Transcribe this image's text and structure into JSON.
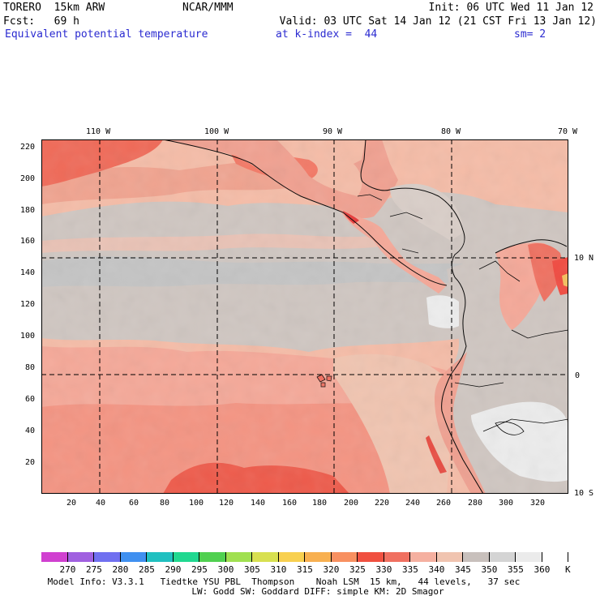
{
  "header": {
    "model": "TORERO  15km ARW",
    "center": "NCAR/MMM",
    "init": "Init: 06 UTC Wed 11 Jan 12",
    "fcst": "Fcst:   69 h",
    "valid": "Valid: 03 UTC Sat 14 Jan 12 (21 CST Fri 13 Jan 12)",
    "field": "Equivalent potential temperature",
    "level": "at k-index =  44",
    "smoothing": "sm= 2"
  },
  "map": {
    "lon_labels": [
      "110 W",
      "100 W",
      "90 W",
      "80 W",
      "70 W"
    ],
    "lat_labels": [
      "10 N",
      "0",
      "10 S"
    ],
    "y_ticks": [
      "220",
      "200",
      "180",
      "160",
      "140",
      "120",
      "100",
      "80",
      "60",
      "40",
      "20"
    ],
    "x_ticks": [
      "20",
      "40",
      "60",
      "80",
      "100",
      "120",
      "140",
      "160",
      "180",
      "200",
      "220",
      "240",
      "260",
      "280",
      "300",
      "320"
    ]
  },
  "colorbar": {
    "unit": "K",
    "labels": [
      "270",
      "275",
      "280",
      "285",
      "290",
      "295",
      "300",
      "305",
      "310",
      "315",
      "320",
      "325",
      "330",
      "335",
      "340",
      "345",
      "350",
      "355",
      "360"
    ],
    "colors": [
      "#d040d0",
      "#a060e0",
      "#7070f0",
      "#4090f0",
      "#20c0c0",
      "#20d890",
      "#50d050",
      "#a0e050",
      "#d8e050",
      "#f8d050",
      "#f8b050",
      "#f89060",
      "#f05040",
      "#f07060",
      "#f5b0a0",
      "#f0c4b0",
      "#c8c0bc",
      "#d4d4d4",
      "#ebebeb",
      "#ffffff"
    ]
  },
  "footer": {
    "line1": "Model Info: V3.3.1   Tiedtke YSU PBL  Thompson    Noah LSM  15 km,   44 levels,   37 sec",
    "line2": "LW: Godd SW: Goddard DIFF: simple KM: 2D Smagor"
  }
}
